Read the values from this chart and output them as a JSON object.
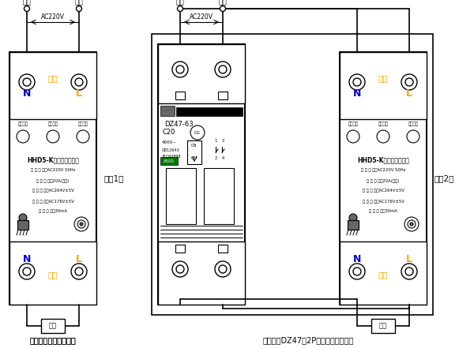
{
  "bg_color": "#ffffff",
  "line_color": "#000000",
  "title1": "保护器单独使用接线图",
  "title2": "保护器与DZ47（2P）拼装使用接线图",
  "label_fig1": "图（1）",
  "label_fig2": "图（2）",
  "zero_line": "零线",
  "hot_line": "火线",
  "ac220v": "AC220V",
  "input_label": "输入",
  "output_label": "输出",
  "n_label": "N",
  "l_label": "L",
  "load_label": "负载",
  "device_name": "HHD5-K家用线路保护器",
  "work_indicator": "工作指示",
  "test_btn": "漏电试拉",
  "reset_btn": "复位按钮",
  "spec1": "工 作 电 源：AC220V 50Hz",
  "spec2": "额 定 电 流：20A(阻性)",
  "spec3": "过 压 保 护：AC264V±5V",
  "spec4": "欠 压 保 护：AC176V±5V",
  "spec5": "漏 电 保 护：30mA",
  "dz47_model": "DZ47-63",
  "dz47_c20": "C20",
  "dz47_400v": "400V~",
  "dz47_gb": "GB12643",
  "dz47_iec": "IEC60898",
  "dz47_on": "ON",
  "dz47_off": "OFF",
  "dz47_iec2": "IEC60898",
  "orange_color": "#FFA500",
  "blue_color": "#0000CD",
  "gray_color": "#666666",
  "green_color": "#007700"
}
